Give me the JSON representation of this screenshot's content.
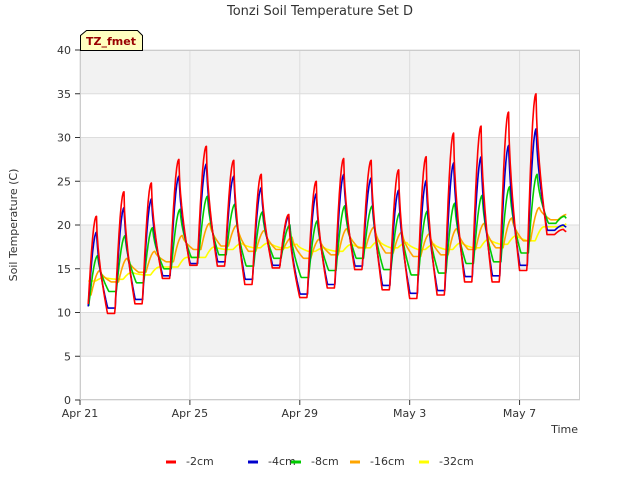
{
  "chart_data": {
    "type": "line",
    "title": "Tonzi Soil Temperature Set D",
    "xlabel": "Time",
    "ylabel": "Soil Temperature (C)",
    "annotation": "TZ_fmet",
    "ylim": [
      0,
      40
    ],
    "yticks": [
      0,
      5,
      10,
      15,
      20,
      25,
      30,
      35,
      40
    ],
    "xlim": [
      0,
      18.2
    ],
    "xticks": [
      {
        "label": "Apr 21",
        "day": 0
      },
      {
        "label": "Apr 25",
        "day": 4
      },
      {
        "label": "Apr 29",
        "day": 8
      },
      {
        "label": "May 3",
        "day": 12
      },
      {
        "label": "May 7",
        "day": 16
      }
    ],
    "grid": true,
    "legend_position": "bottom",
    "day_start": 0.3,
    "day_end": 17.7,
    "series": [
      {
        "name": "-2cm",
        "color": "#ff0000",
        "daily_min": [
          9.3,
          9.9,
          11.0,
          13.9,
          15.4,
          15.3,
          13.2,
          15.1,
          11.7,
          12.8,
          14.9,
          12.6,
          11.6,
          12.0,
          13.5,
          13.5,
          14.8,
          18.9
        ],
        "daily_max": [
          21.0,
          23.8,
          24.8,
          27.5,
          29.0,
          27.4,
          25.8,
          21.2,
          25.0,
          27.6,
          27.4,
          26.3,
          27.8,
          30.5,
          31.3,
          32.9,
          35.0,
          19.5
        ]
      },
      {
        "name": "-4cm",
        "color": "#0000cc",
        "daily_min": [
          9.8,
          10.5,
          11.5,
          14.2,
          15.6,
          15.8,
          13.8,
          15.4,
          12.1,
          13.2,
          15.3,
          13.1,
          12.2,
          12.5,
          14.1,
          14.2,
          15.4,
          19.4
        ],
        "daily_max": [
          19.2,
          22.0,
          23.0,
          25.6,
          27.0,
          25.6,
          24.3,
          21.0,
          23.6,
          25.8,
          25.4,
          24.0,
          25.1,
          27.1,
          27.8,
          29.1,
          31.0,
          20.0
        ]
      },
      {
        "name": "-8cm",
        "color": "#00cc00",
        "daily_min": [
          10.8,
          12.4,
          13.4,
          15.0,
          16.3,
          16.6,
          15.3,
          16.2,
          14.0,
          14.8,
          16.2,
          14.9,
          14.3,
          14.5,
          15.6,
          15.8,
          16.8,
          20.2
        ],
        "daily_max": [
          16.5,
          18.8,
          19.7,
          21.8,
          23.3,
          22.4,
          21.5,
          20.0,
          20.5,
          22.2,
          22.2,
          21.4,
          21.6,
          22.5,
          23.4,
          24.4,
          25.8,
          21.0
        ]
      },
      {
        "name": "-16cm",
        "color": "#ffa500",
        "daily_min": [
          12.0,
          13.5,
          14.6,
          15.8,
          17.2,
          17.6,
          17.0,
          17.2,
          16.2,
          16.6,
          17.4,
          16.8,
          16.4,
          16.6,
          17.2,
          17.4,
          18.2,
          20.6
        ],
        "daily_max": [
          14.8,
          16.2,
          17.0,
          18.8,
          20.2,
          20.0,
          19.4,
          18.6,
          18.4,
          19.6,
          19.8,
          19.2,
          19.0,
          19.6,
          20.2,
          20.8,
          22.0,
          21.2
        ]
      },
      {
        "name": "-32cm",
        "color": "#ffff00",
        "daily_min": [
          13.6,
          13.8,
          14.3,
          15.2,
          16.3,
          17.2,
          17.4,
          17.4,
          17.0,
          17.0,
          17.4,
          17.4,
          17.2,
          17.2,
          17.4,
          17.8,
          18.2,
          19.8
        ],
        "daily_max": [
          14.0,
          14.6,
          15.2,
          16.3,
          17.5,
          17.9,
          18.0,
          17.8,
          17.4,
          17.8,
          18.2,
          18.0,
          17.8,
          18.0,
          18.4,
          18.8,
          19.8,
          20.4
        ]
      }
    ]
  }
}
